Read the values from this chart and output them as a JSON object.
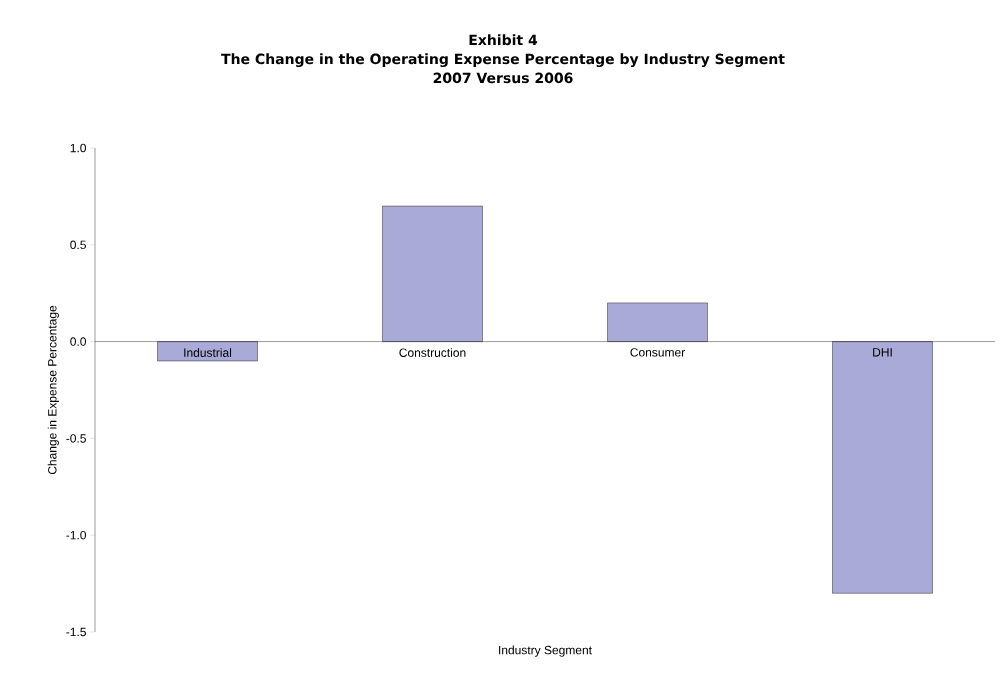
{
  "chart_data": {
    "type": "bar",
    "title": "The Change in the Operating Expense Percentage by Industry Segment",
    "subtitle": "2007 Versus 2006",
    "annotations": [
      "Exhibit 4"
    ],
    "xlabel": "Industry Segment",
    "ylabel": "Change in Expense Percentage",
    "categories": [
      "Industrial",
      "Construction",
      "Consumer",
      "DHI"
    ],
    "values": [
      -0.1,
      0.7,
      0.2,
      -1.3
    ],
    "color": "#aaaad8",
    "ylim": [
      -1.5,
      1.0
    ],
    "yticks": [
      {
        "value": -1.5,
        "label": "-1.5"
      },
      {
        "value": -1.0,
        "label": "-1.0"
      },
      {
        "value": -0.5,
        "label": "-0.5"
      },
      {
        "value": 0,
        "label": "0.0"
      },
      {
        "value": 0.5,
        "label": "0.5"
      },
      {
        "value": 1.0,
        "label": "1.0"
      }
    ],
    "grid": false
  }
}
